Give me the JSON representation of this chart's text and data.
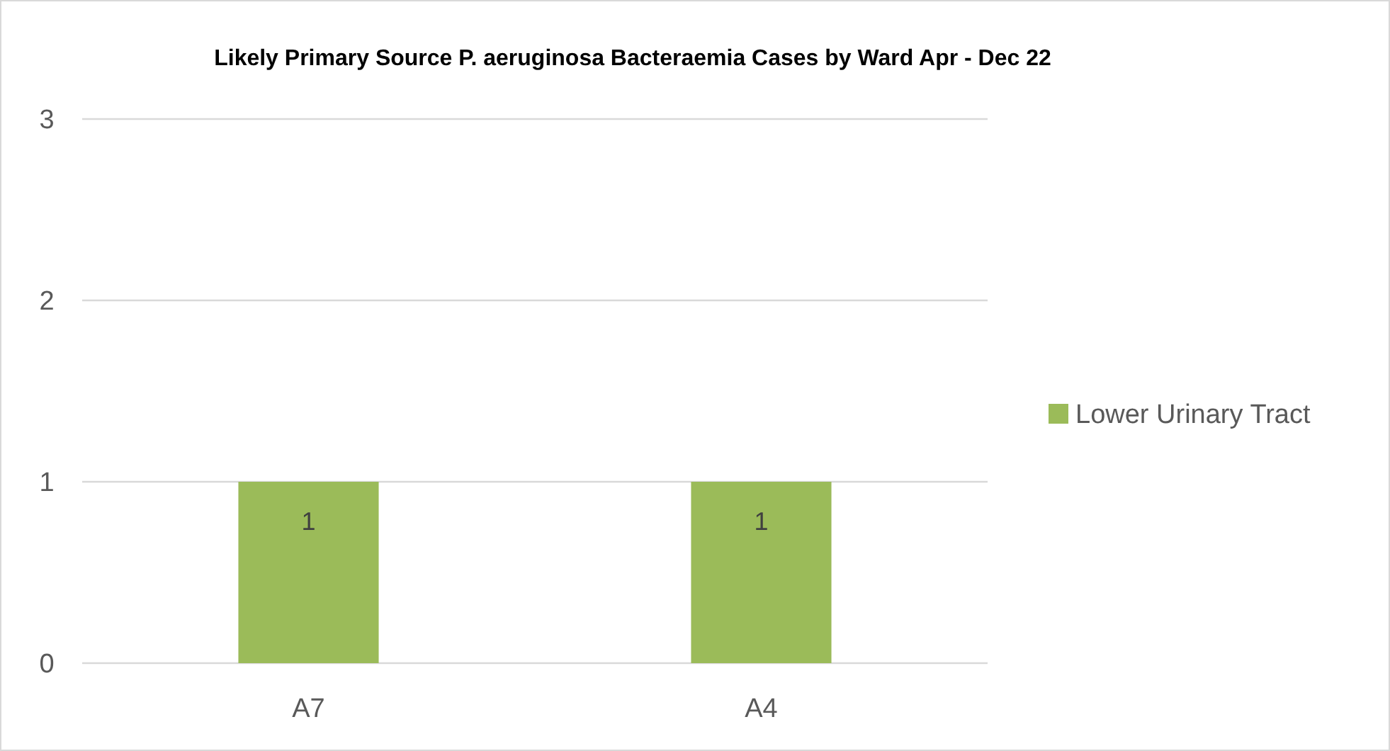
{
  "chart_data": {
    "type": "bar",
    "title": "Likely Primary Source P. aeruginosa Bacteraemia Cases by Ward Apr - Dec 22",
    "categories": [
      "A7",
      "A4"
    ],
    "series": [
      {
        "name": "Lower Urinary Tract",
        "color": "#9bbb59",
        "values": [
          1,
          1
        ]
      }
    ],
    "ylim": [
      0,
      3
    ],
    "yticks": [
      0,
      1,
      2,
      3
    ],
    "grid": "y",
    "legend": "right",
    "data_labels": true
  }
}
